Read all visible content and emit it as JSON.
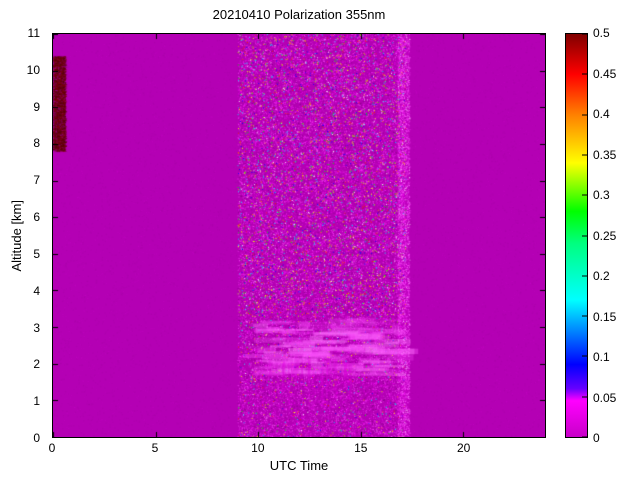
{
  "chart_data": {
    "type": "heatmap",
    "title": "20210410 Polarization 355nm",
    "xlabel": "UTC Time",
    "ylabel": "Altitude [km]",
    "xlim": [
      0,
      24
    ],
    "ylim": [
      0,
      11
    ],
    "xticks": [
      0,
      5,
      10,
      15,
      20
    ],
    "yticks": [
      0,
      1,
      2,
      3,
      4,
      5,
      6,
      7,
      8,
      9,
      10,
      11
    ],
    "grid": false,
    "legend": "none",
    "background_value": 0,
    "colorbar": {
      "min": 0,
      "max": 0.5,
      "ticks": [
        0,
        0.05,
        0.1,
        0.15,
        0.2,
        0.25,
        0.3,
        0.35,
        0.4,
        0.45,
        0.5
      ],
      "stops": [
        {
          "value": 0.0,
          "color": "#c800c8"
        },
        {
          "value": 0.045,
          "color": "#ff00ff"
        },
        {
          "value": 0.06,
          "color": "#6600ff"
        },
        {
          "value": 0.09,
          "color": "#0000ff"
        },
        {
          "value": 0.13,
          "color": "#0080ff"
        },
        {
          "value": 0.17,
          "color": "#00ffff"
        },
        {
          "value": 0.24,
          "color": "#00ff80"
        },
        {
          "value": 0.28,
          "color": "#00ff00"
        },
        {
          "value": 0.31,
          "color": "#80ff00"
        },
        {
          "value": 0.34,
          "color": "#ffff00"
        },
        {
          "value": 0.4,
          "color": "#ff8000"
        },
        {
          "value": 0.45,
          "color": "#ff0000"
        },
        {
          "value": 0.5,
          "color": "#800000"
        }
      ]
    },
    "colors": {
      "figure_bg": "#ffffff",
      "axis": "#000000",
      "base": "#b400b4",
      "base_dark": "#7d007d",
      "base_bright": "#ff00ff",
      "speckle_pink": "#ff4dff",
      "cloud_pink": "#ff55ff",
      "cloud_pink_bright": "#ff88ff",
      "virga_pink": "#e000e0",
      "dark_patch": "#6e0000"
    },
    "speckle_palette": [
      "#0000ff",
      "#00ccff",
      "#00ffff",
      "#00ff00",
      "#aaff00",
      "#ffff00",
      "#ff8800",
      "#ff2200",
      "#ffffff"
    ],
    "features": [
      {
        "name": "background",
        "x": [
          0,
          24
        ],
        "y": [
          0,
          11
        ],
        "value": 0,
        "description": "uniform magenta field, depolarization near 0"
      },
      {
        "name": "noisy-measurement-band",
        "x": [
          9.0,
          17.2
        ],
        "y": [
          0,
          11
        ],
        "description": "dense multicolor speckle noise over magenta background"
      },
      {
        "name": "bright-right-edge-column",
        "x": [
          16.8,
          17.4
        ],
        "y": [
          0,
          11
        ],
        "description": "brighter pink noisy vertical column at band edge"
      },
      {
        "name": "dark-red-patch-left",
        "x": [
          0,
          0.6
        ],
        "y": [
          7.8,
          10.4
        ],
        "description": "dark red high-value patch hugging left edge"
      },
      {
        "name": "low-level-cloud-streaks",
        "x": [
          10,
          17
        ],
        "y": [
          1.7,
          3.2
        ],
        "description": "bright pink horizontal streaks near 2-3 km"
      },
      {
        "name": "virga-streaks",
        "x": [
          10.3,
          14.5
        ],
        "y": [
          0.8,
          2.2
        ],
        "description": "faint vertical pink streaks below the cloud layer"
      }
    ]
  }
}
